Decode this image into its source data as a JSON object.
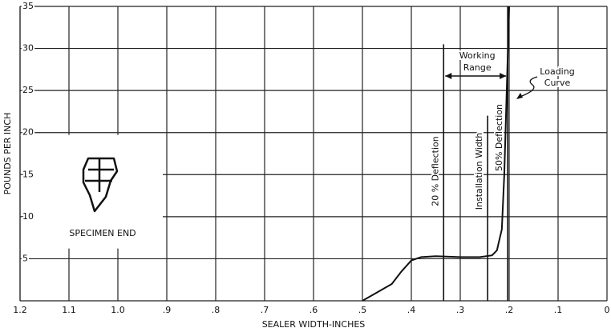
{
  "chart_data": {
    "type": "line",
    "x_label": "SEALER WIDTH-INCHES",
    "y_label": "POUNDS PER INCH",
    "x": [
      0.5,
      0.47,
      0.44,
      0.42,
      0.4,
      0.38,
      0.35,
      0.3,
      0.26,
      0.235,
      0.225,
      0.215,
      0.21,
      0.205,
      0.2
    ],
    "values": [
      0,
      1,
      2,
      3.5,
      4.8,
      5.2,
      5.3,
      5.2,
      5.2,
      5.4,
      6,
      8.5,
      15,
      25,
      35
    ],
    "color": "#111111",
    "xlim": [
      1.2,
      0
    ],
    "ylim": [
      0,
      35
    ],
    "xticks": [
      {
        "value": 1.2,
        "label": "1.2"
      },
      {
        "value": 1.1,
        "label": "1.1"
      },
      {
        "value": 1.0,
        "label": "1.0"
      },
      {
        "value": 0.9,
        "label": ".9"
      },
      {
        "value": 0.8,
        "label": ".8"
      },
      {
        "value": 0.7,
        "label": ".7"
      },
      {
        "value": 0.6,
        "label": ".6"
      },
      {
        "value": 0.5,
        "label": ".5"
      },
      {
        "value": 0.4,
        "label": ".4"
      },
      {
        "value": 0.3,
        "label": ".3"
      },
      {
        "value": 0.2,
        "label": ".2"
      },
      {
        "value": 0.1,
        "label": ".1"
      },
      0
    ],
    "yticks": [
      5,
      10,
      15,
      20,
      25,
      30,
      35
    ],
    "grid": true,
    "reference_lines": [
      {
        "label": "20 % Deflection",
        "x": 0.334,
        "y_top": 30.5
      },
      {
        "label": "Installation Width",
        "x": 0.244,
        "y_top": 22
      },
      {
        "label": "50% Deflection",
        "x": 0.203,
        "y_top": 35
      }
    ],
    "working_range": [
      "Working",
      "Range"
    ],
    "curve_label": [
      "Loading",
      "Curve"
    ],
    "specimen_label": "SPECIMEN END"
  }
}
